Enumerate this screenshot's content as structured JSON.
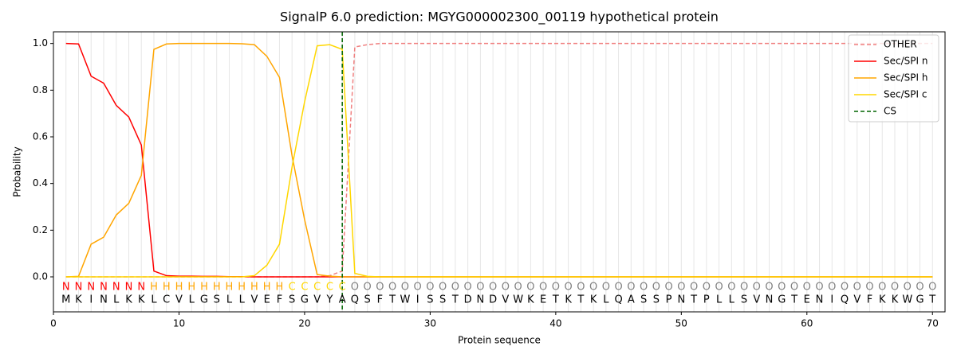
{
  "chart_data": {
    "type": "line",
    "title": "SignalP 6.0 prediction: MGYG000002300_00119 hypothetical protein",
    "xlabel": "Protein sequence",
    "ylabel": "Probability",
    "x": [
      1,
      2,
      3,
      4,
      5,
      6,
      7,
      8,
      9,
      10,
      11,
      12,
      13,
      14,
      15,
      16,
      17,
      18,
      19,
      20,
      21,
      22,
      23,
      24,
      25,
      26,
      27,
      28,
      29,
      30,
      31,
      32,
      33,
      34,
      35,
      36,
      37,
      38,
      39,
      40,
      41,
      42,
      43,
      44,
      45,
      46,
      47,
      48,
      49,
      50,
      51,
      52,
      53,
      54,
      55,
      56,
      57,
      58,
      59,
      60,
      61,
      62,
      63,
      64,
      65,
      66,
      67,
      68,
      69,
      70
    ],
    "sequence": [
      "M",
      "K",
      "I",
      "N",
      "L",
      "K",
      "K",
      "L",
      "C",
      "V",
      "L",
      "G",
      "S",
      "L",
      "L",
      "V",
      "E",
      "F",
      "S",
      "G",
      "V",
      "Y",
      "A",
      "Q",
      "S",
      "F",
      "T",
      "W",
      "I",
      "S",
      "S",
      "T",
      "D",
      "N",
      "D",
      "V",
      "W",
      "K",
      "E",
      "T",
      "K",
      "T",
      "K",
      "L",
      "Q",
      "A",
      "S",
      "S",
      "P",
      "N",
      "T",
      "P",
      "L",
      "L",
      "S",
      "V",
      "N",
      "G",
      "T",
      "E",
      "N",
      "I",
      "Q",
      "V",
      "F",
      "K",
      "K",
      "W",
      "G",
      "T"
    ],
    "labels": [
      "N",
      "N",
      "N",
      "N",
      "N",
      "N",
      "N",
      "H",
      "H",
      "H",
      "H",
      "H",
      "H",
      "H",
      "H",
      "H",
      "H",
      "H",
      "C",
      "C",
      "C",
      "C",
      "C",
      "O",
      "O",
      "O",
      "O",
      "O",
      "O",
      "O",
      "O",
      "O",
      "O",
      "O",
      "O",
      "O",
      "O",
      "O",
      "O",
      "O",
      "O",
      "O",
      "O",
      "O",
      "O",
      "O",
      "O",
      "O",
      "O",
      "O",
      "O",
      "O",
      "O",
      "O",
      "O",
      "O",
      "O",
      "O",
      "O",
      "O",
      "O",
      "O",
      "O",
      "O",
      "O",
      "O",
      "O",
      "O",
      "O",
      "O"
    ],
    "label_colors": {
      "N": "#ff0000",
      "H": "#ffa500",
      "C": "#ffd700",
      "O": "#808080"
    },
    "series": [
      {
        "name": "OTHER",
        "color": "#f08080",
        "dash": true,
        "values": [
          0,
          0,
          0,
          0,
          0,
          0,
          0,
          0,
          0,
          0,
          0,
          0,
          0,
          0,
          0,
          0,
          0,
          0,
          0,
          0,
          0,
          0.005,
          0.025,
          0.985,
          0.995,
          1,
          1,
          1,
          1,
          1,
          1,
          1,
          1,
          1,
          1,
          1,
          1,
          1,
          1,
          1,
          1,
          1,
          1,
          1,
          1,
          1,
          1,
          1,
          1,
          1,
          1,
          1,
          1,
          1,
          1,
          1,
          1,
          1,
          1,
          1,
          1,
          1,
          1,
          1,
          1,
          1,
          1,
          1,
          1,
          1
        ]
      },
      {
        "name": "Sec/SPI n",
        "color": "#ff0000",
        "values": [
          1.0,
          0.998,
          0.86,
          0.83,
          0.735,
          0.685,
          0.565,
          0.025,
          0.005,
          0.003,
          0.003,
          0.002,
          0.002,
          0.001,
          0.001,
          0,
          0,
          0,
          0,
          0,
          0,
          0,
          0,
          0,
          0,
          0,
          0,
          0,
          0,
          0,
          0,
          0,
          0,
          0,
          0,
          0,
          0,
          0,
          0,
          0,
          0,
          0,
          0,
          0,
          0,
          0,
          0,
          0,
          0,
          0,
          0,
          0,
          0,
          0,
          0,
          0,
          0,
          0,
          0,
          0,
          0,
          0,
          0,
          0,
          0,
          0,
          0,
          0,
          0,
          0
        ]
      },
      {
        "name": "Sec/SPI h",
        "color": "#ffa500",
        "values": [
          0,
          0.002,
          0.14,
          0.17,
          0.265,
          0.315,
          0.435,
          0.975,
          0.998,
          1,
          1,
          1,
          1,
          1,
          0.999,
          0.995,
          0.945,
          0.855,
          0.52,
          0.245,
          0.01,
          0.003,
          0,
          0,
          0,
          0,
          0,
          0,
          0,
          0,
          0,
          0,
          0,
          0,
          0,
          0,
          0,
          0,
          0,
          0,
          0,
          0,
          0,
          0,
          0,
          0,
          0,
          0,
          0,
          0,
          0,
          0,
          0,
          0,
          0,
          0,
          0,
          0,
          0,
          0,
          0,
          0,
          0,
          0,
          0,
          0,
          0,
          0,
          0,
          0
        ]
      },
      {
        "name": "Sec/SPI c",
        "color": "#ffd700",
        "values": [
          0,
          0,
          0,
          0,
          0,
          0,
          0,
          0,
          0,
          0,
          0,
          0,
          0,
          0,
          0,
          0.005,
          0.05,
          0.14,
          0.47,
          0.75,
          0.99,
          0.995,
          0.975,
          0.015,
          0.002,
          0,
          0,
          0,
          0,
          0,
          0,
          0,
          0,
          0,
          0,
          0,
          0,
          0,
          0,
          0,
          0,
          0,
          0,
          0,
          0,
          0,
          0,
          0,
          0,
          0,
          0,
          0,
          0,
          0,
          0,
          0,
          0,
          0,
          0,
          0,
          0,
          0,
          0,
          0,
          0,
          0,
          0,
          0,
          0,
          0
        ]
      }
    ],
    "cs": {
      "name": "CS",
      "x": 23,
      "color": "#006400"
    },
    "xlim": [
      0,
      71
    ],
    "ylim": [
      -0.15,
      1.05
    ],
    "xticks": [
      0,
      10,
      20,
      30,
      40,
      50,
      60,
      70
    ],
    "yticks": [
      {
        "value": 0,
        "label": "0.0"
      },
      {
        "value": 0.2,
        "label": "0.2"
      },
      {
        "value": 0.4,
        "label": "0.4"
      },
      {
        "value": 0.6,
        "label": "0.6"
      },
      {
        "value": 0.8,
        "label": "0.8"
      },
      {
        "value": 1,
        "label": "1.0"
      }
    ],
    "vgrid": true,
    "legend": "upper right"
  }
}
